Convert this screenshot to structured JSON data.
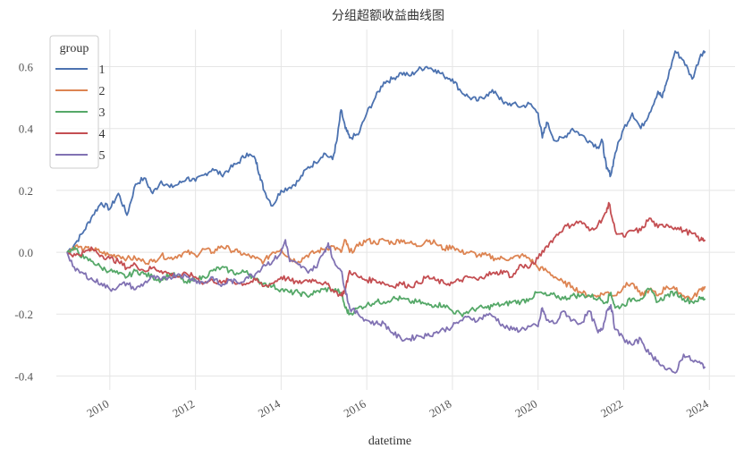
{
  "chart_data": {
    "type": "line",
    "title": "分组超额收益曲线图",
    "xlabel": "datetime",
    "ylabel": "",
    "xlim": [
      2008.75,
      2024.6
    ],
    "ylim": [
      -0.445,
      0.72
    ],
    "grid": true,
    "x_ticks": [
      {
        "value": 2010,
        "label": "2010"
      },
      {
        "value": 2012,
        "label": "2012"
      },
      {
        "value": 2014,
        "label": "2014"
      },
      {
        "value": 2016,
        "label": "2016"
      },
      {
        "value": 2018,
        "label": "2018"
      },
      {
        "value": 2020,
        "label": "2020"
      },
      {
        "value": 2022,
        "label": "2022"
      },
      {
        "value": 2024,
        "label": "2024"
      }
    ],
    "y_ticks": [
      {
        "value": 0.6,
        "label": "0.6"
      },
      {
        "value": 0.4,
        "label": "0.4"
      },
      {
        "value": 0.2,
        "label": "0.2"
      },
      {
        "value": 0.0,
        "label": "0.0"
      },
      {
        "value": -0.2,
        "label": "-0.2"
      },
      {
        "value": -0.4,
        "label": "-0.4"
      }
    ],
    "legend": {
      "title": "group",
      "position": "upper left"
    },
    "series": [
      {
        "name": "1",
        "color": "#4c72b0",
        "x": [
          2009.0,
          2009.2,
          2009.4,
          2009.6,
          2009.8,
          2010.0,
          2010.2,
          2010.4,
          2010.6,
          2010.8,
          2011.0,
          2011.2,
          2011.4,
          2011.6,
          2011.8,
          2012.0,
          2012.2,
          2012.4,
          2012.6,
          2012.8,
          2013.0,
          2013.2,
          2013.4,
          2013.5,
          2013.6,
          2013.8,
          2014.0,
          2014.2,
          2014.4,
          2014.6,
          2014.8,
          2015.0,
          2015.2,
          2015.3,
          2015.4,
          2015.5,
          2015.6,
          2015.8,
          2016.0,
          2016.2,
          2016.4,
          2016.6,
          2016.8,
          2017.0,
          2017.2,
          2017.4,
          2017.6,
          2017.8,
          2018.0,
          2018.2,
          2018.4,
          2018.6,
          2018.8,
          2019.0,
          2019.2,
          2019.4,
          2019.6,
          2019.8,
          2020.0,
          2020.1,
          2020.2,
          2020.4,
          2020.6,
          2020.8,
          2021.0,
          2021.2,
          2021.4,
          2021.5,
          2021.6,
          2021.7,
          2021.8,
          2022.0,
          2022.2,
          2022.4,
          2022.6,
          2022.8,
          2022.9,
          2023.0,
          2023.2,
          2023.4,
          2023.6,
          2023.8,
          2023.9
        ],
        "y": [
          0.0,
          0.03,
          0.07,
          0.12,
          0.16,
          0.14,
          0.19,
          0.12,
          0.22,
          0.24,
          0.19,
          0.23,
          0.21,
          0.22,
          0.24,
          0.23,
          0.25,
          0.27,
          0.25,
          0.27,
          0.29,
          0.32,
          0.3,
          0.25,
          0.2,
          0.15,
          0.2,
          0.21,
          0.23,
          0.27,
          0.29,
          0.32,
          0.3,
          0.36,
          0.46,
          0.4,
          0.37,
          0.38,
          0.45,
          0.5,
          0.55,
          0.56,
          0.58,
          0.57,
          0.59,
          0.6,
          0.59,
          0.57,
          0.56,
          0.52,
          0.5,
          0.49,
          0.51,
          0.52,
          0.48,
          0.48,
          0.47,
          0.48,
          0.45,
          0.37,
          0.42,
          0.36,
          0.37,
          0.4,
          0.38,
          0.36,
          0.34,
          0.36,
          0.27,
          0.25,
          0.32,
          0.4,
          0.45,
          0.4,
          0.45,
          0.52,
          0.5,
          0.55,
          0.65,
          0.62,
          0.56,
          0.64,
          0.65
        ]
      },
      {
        "name": "2",
        "color": "#dd8452",
        "x": [
          2009.0,
          2009.2,
          2009.4,
          2009.6,
          2009.8,
          2010.0,
          2010.2,
          2010.4,
          2010.6,
          2010.8,
          2011.0,
          2011.2,
          2011.4,
          2011.6,
          2011.8,
          2012.0,
          2012.2,
          2012.4,
          2012.6,
          2012.8,
          2013.0,
          2013.2,
          2013.4,
          2013.6,
          2013.8,
          2014.0,
          2014.2,
          2014.4,
          2014.6,
          2014.8,
          2015.0,
          2015.2,
          2015.4,
          2015.5,
          2015.6,
          2015.8,
          2016.0,
          2016.2,
          2016.4,
          2016.6,
          2016.8,
          2017.0,
          2017.2,
          2017.4,
          2017.6,
          2017.8,
          2018.0,
          2018.2,
          2018.4,
          2018.6,
          2018.8,
          2019.0,
          2019.2,
          2019.4,
          2019.6,
          2019.8,
          2020.0,
          2020.2,
          2020.4,
          2020.6,
          2020.8,
          2021.0,
          2021.2,
          2021.4,
          2021.6,
          2021.8,
          2022.0,
          2022.2,
          2022.4,
          2022.6,
          2022.8,
          2023.0,
          2023.2,
          2023.4,
          2023.6,
          2023.8,
          2023.9
        ],
        "y": [
          0.0,
          0.02,
          0.01,
          0.01,
          0.0,
          -0.01,
          -0.01,
          -0.02,
          -0.02,
          -0.03,
          -0.03,
          -0.01,
          -0.02,
          -0.01,
          0.0,
          -0.01,
          0.01,
          0.0,
          0.02,
          0.01,
          0.0,
          -0.01,
          -0.02,
          -0.03,
          0.0,
          0.01,
          -0.02,
          -0.03,
          -0.01,
          0.0,
          0.01,
          0.02,
          0.0,
          0.04,
          0.0,
          0.02,
          0.04,
          0.03,
          0.04,
          0.03,
          0.04,
          0.03,
          0.02,
          0.04,
          0.03,
          0.01,
          0.02,
          0.0,
          0.0,
          -0.01,
          -0.01,
          -0.02,
          -0.02,
          -0.02,
          -0.01,
          -0.02,
          -0.05,
          -0.06,
          -0.08,
          -0.1,
          -0.11,
          -0.13,
          -0.14,
          -0.14,
          -0.13,
          -0.14,
          -0.11,
          -0.1,
          -0.14,
          -0.12,
          -0.14,
          -0.11,
          -0.12,
          -0.14,
          -0.15,
          -0.12,
          -0.11
        ]
      },
      {
        "name": "3",
        "color": "#55a868",
        "x": [
          2009.0,
          2009.2,
          2009.4,
          2009.6,
          2009.8,
          2010.0,
          2010.2,
          2010.4,
          2010.6,
          2010.8,
          2011.0,
          2011.2,
          2011.4,
          2011.6,
          2011.8,
          2012.0,
          2012.2,
          2012.4,
          2012.6,
          2012.8,
          2013.0,
          2013.2,
          2013.4,
          2013.6,
          2013.8,
          2014.0,
          2014.2,
          2014.4,
          2014.6,
          2014.8,
          2015.0,
          2015.2,
          2015.4,
          2015.5,
          2015.6,
          2015.8,
          2016.0,
          2016.2,
          2016.4,
          2016.6,
          2016.8,
          2017.0,
          2017.2,
          2017.4,
          2017.6,
          2017.8,
          2018.0,
          2018.2,
          2018.4,
          2018.6,
          2018.8,
          2019.0,
          2019.2,
          2019.4,
          2019.6,
          2019.8,
          2020.0,
          2020.2,
          2020.4,
          2020.6,
          2020.8,
          2021.0,
          2021.2,
          2021.4,
          2021.6,
          2021.7,
          2021.8,
          2022.0,
          2022.2,
          2022.4,
          2022.6,
          2022.8,
          2023.0,
          2023.2,
          2023.4,
          2023.6,
          2023.8,
          2023.9
        ],
        "y": [
          0.0,
          0.01,
          -0.02,
          -0.03,
          -0.05,
          -0.06,
          -0.07,
          -0.08,
          -0.06,
          -0.07,
          -0.08,
          -0.09,
          -0.07,
          -0.08,
          -0.1,
          -0.09,
          -0.08,
          -0.06,
          -0.05,
          -0.06,
          -0.07,
          -0.06,
          -0.09,
          -0.1,
          -0.11,
          -0.12,
          -0.13,
          -0.13,
          -0.14,
          -0.13,
          -0.12,
          -0.12,
          -0.13,
          -0.18,
          -0.2,
          -0.18,
          -0.17,
          -0.16,
          -0.16,
          -0.15,
          -0.15,
          -0.16,
          -0.16,
          -0.17,
          -0.17,
          -0.17,
          -0.19,
          -0.2,
          -0.19,
          -0.18,
          -0.18,
          -0.17,
          -0.17,
          -0.16,
          -0.16,
          -0.15,
          -0.13,
          -0.14,
          -0.14,
          -0.15,
          -0.14,
          -0.14,
          -0.14,
          -0.15,
          -0.16,
          -0.13,
          -0.18,
          -0.17,
          -0.15,
          -0.15,
          -0.12,
          -0.16,
          -0.14,
          -0.13,
          -0.15,
          -0.16,
          -0.15,
          -0.15
        ]
      },
      {
        "name": "4",
        "color": "#c44e52",
        "x": [
          2009.0,
          2009.2,
          2009.4,
          2009.6,
          2009.8,
          2010.0,
          2010.2,
          2010.4,
          2010.6,
          2010.8,
          2011.0,
          2011.2,
          2011.4,
          2011.6,
          2011.8,
          2012.0,
          2012.2,
          2012.4,
          2012.6,
          2012.8,
          2013.0,
          2013.2,
          2013.4,
          2013.6,
          2013.8,
          2014.0,
          2014.2,
          2014.4,
          2014.6,
          2014.8,
          2015.0,
          2015.2,
          2015.4,
          2015.5,
          2015.6,
          2015.8,
          2016.0,
          2016.2,
          2016.4,
          2016.6,
          2016.8,
          2017.0,
          2017.2,
          2017.4,
          2017.6,
          2017.8,
          2018.0,
          2018.2,
          2018.4,
          2018.6,
          2018.8,
          2019.0,
          2019.2,
          2019.4,
          2019.6,
          2019.8,
          2020.0,
          2020.2,
          2020.4,
          2020.6,
          2020.8,
          2021.0,
          2021.2,
          2021.4,
          2021.6,
          2021.65,
          2021.8,
          2022.0,
          2022.2,
          2022.4,
          2022.6,
          2022.8,
          2023.0,
          2023.2,
          2023.4,
          2023.6,
          2023.8,
          2023.9
        ],
        "y": [
          0.0,
          -0.01,
          0.0,
          0.01,
          -0.01,
          -0.02,
          -0.03,
          -0.05,
          -0.04,
          -0.06,
          -0.05,
          -0.06,
          -0.07,
          -0.08,
          -0.07,
          -0.08,
          -0.1,
          -0.09,
          -0.1,
          -0.09,
          -0.1,
          -0.1,
          -0.09,
          -0.11,
          -0.1,
          -0.08,
          -0.09,
          -0.1,
          -0.09,
          -0.09,
          -0.1,
          -0.12,
          -0.14,
          -0.12,
          -0.06,
          -0.08,
          -0.09,
          -0.09,
          -0.1,
          -0.11,
          -0.1,
          -0.11,
          -0.1,
          -0.08,
          -0.09,
          -0.1,
          -0.1,
          -0.09,
          -0.08,
          -0.09,
          -0.07,
          -0.07,
          -0.06,
          -0.08,
          -0.04,
          -0.05,
          -0.02,
          0.02,
          0.05,
          0.08,
          0.09,
          0.1,
          0.07,
          0.09,
          0.13,
          0.16,
          0.07,
          0.05,
          0.07,
          0.07,
          0.11,
          0.08,
          0.09,
          0.08,
          0.07,
          0.06,
          0.04,
          0.04
        ]
      },
      {
        "name": "5",
        "color": "#8172b3",
        "x": [
          2009.0,
          2009.2,
          2009.4,
          2009.6,
          2009.8,
          2010.0,
          2010.2,
          2010.4,
          2010.6,
          2010.8,
          2011.0,
          2011.2,
          2011.4,
          2011.6,
          2011.8,
          2012.0,
          2012.2,
          2012.4,
          2012.6,
          2012.8,
          2013.0,
          2013.2,
          2013.4,
          2013.6,
          2013.8,
          2014.0,
          2014.1,
          2014.2,
          2014.4,
          2014.6,
          2014.8,
          2015.0,
          2015.1,
          2015.2,
          2015.4,
          2015.5,
          2015.6,
          2015.8,
          2016.0,
          2016.2,
          2016.4,
          2016.6,
          2016.8,
          2017.0,
          2017.2,
          2017.4,
          2017.6,
          2017.8,
          2018.0,
          2018.2,
          2018.4,
          2018.6,
          2018.8,
          2019.0,
          2019.2,
          2019.4,
          2019.6,
          2019.8,
          2020.0,
          2020.1,
          2020.2,
          2020.4,
          2020.6,
          2020.8,
          2021.0,
          2021.2,
          2021.4,
          2021.5,
          2021.6,
          2021.7,
          2021.8,
          2022.0,
          2022.2,
          2022.4,
          2022.6,
          2022.8,
          2023.0,
          2023.2,
          2023.4,
          2023.6,
          2023.8,
          2023.9
        ],
        "y": [
          0.0,
          -0.06,
          -0.07,
          -0.09,
          -0.1,
          -0.12,
          -0.11,
          -0.1,
          -0.12,
          -0.1,
          -0.08,
          -0.09,
          -0.08,
          -0.07,
          -0.08,
          -0.09,
          -0.1,
          -0.08,
          -0.11,
          -0.09,
          -0.1,
          -0.08,
          -0.07,
          -0.04,
          -0.03,
          0.0,
          0.04,
          -0.03,
          -0.04,
          -0.06,
          -0.05,
          0.0,
          0.03,
          -0.02,
          -0.06,
          -0.12,
          -0.18,
          -0.2,
          -0.22,
          -0.23,
          -0.23,
          -0.26,
          -0.28,
          -0.28,
          -0.27,
          -0.27,
          -0.26,
          -0.25,
          -0.24,
          -0.22,
          -0.21,
          -0.22,
          -0.2,
          -0.21,
          -0.24,
          -0.25,
          -0.25,
          -0.24,
          -0.24,
          -0.18,
          -0.22,
          -0.23,
          -0.19,
          -0.22,
          -0.23,
          -0.19,
          -0.26,
          -0.25,
          -0.19,
          -0.17,
          -0.25,
          -0.28,
          -0.3,
          -0.28,
          -0.33,
          -0.35,
          -0.38,
          -0.39,
          -0.33,
          -0.35,
          -0.36,
          -0.37
        ]
      }
    ]
  },
  "legend_labels": {
    "title": "group",
    "items": [
      "1",
      "2",
      "3",
      "4",
      "5"
    ]
  }
}
